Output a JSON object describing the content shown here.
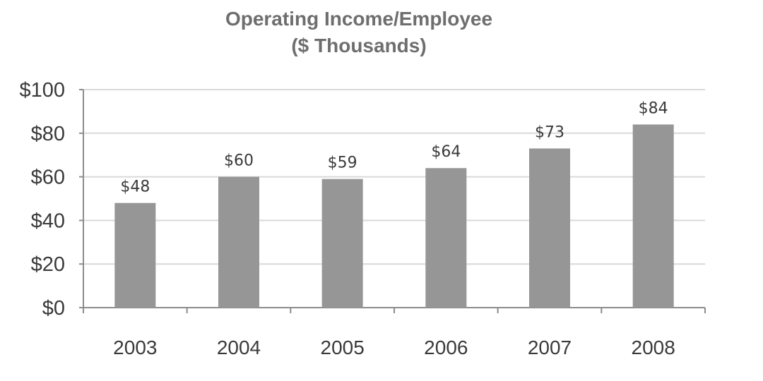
{
  "chart_data": {
    "type": "bar",
    "title": "Operating Income/Employee",
    "subtitle": "($ Thousands)",
    "categories": [
      "2003",
      "2004",
      "2005",
      "2006",
      "2007",
      "2008"
    ],
    "values": [
      48,
      60,
      59,
      64,
      73,
      84
    ],
    "data_labels": [
      "$48",
      "$60",
      "$59",
      "$64",
      "$73",
      "$84"
    ],
    "ylim": [
      0,
      100
    ],
    "yticks": [
      0,
      20,
      40,
      60,
      80,
      100
    ],
    "ytick_labels": [
      "$0",
      "$20",
      "$40",
      "$60",
      "$80",
      "$100"
    ],
    "xlabel": "",
    "ylabel": "",
    "grid": true,
    "legend": "none",
    "bar_color": "#969696",
    "grid_color": "#d9d9d9"
  }
}
